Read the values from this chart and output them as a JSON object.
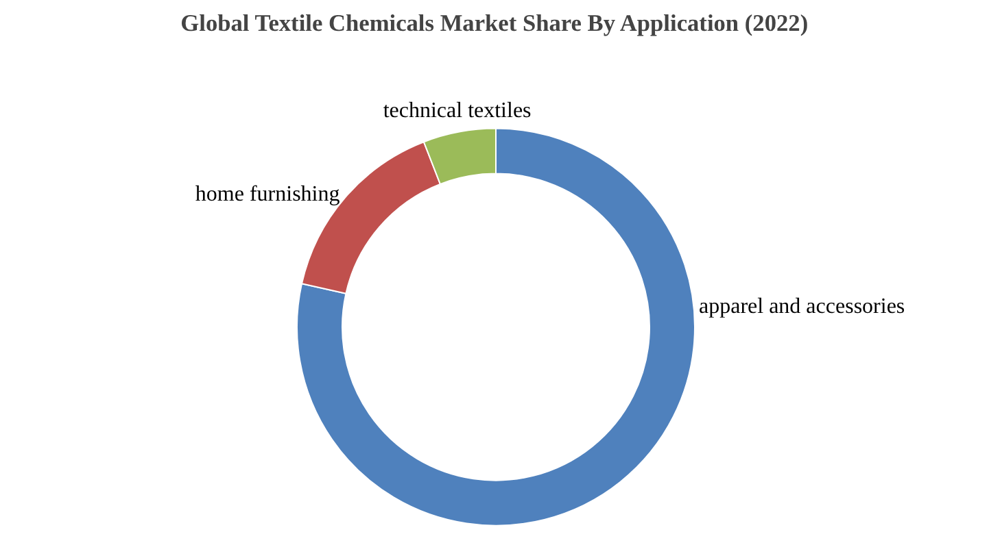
{
  "chart_data": {
    "type": "donut",
    "title": "Global Textile Chemicals Market Share By Application (2022)",
    "categories": [
      "apparel and accessories",
      "home furnishing",
      "technical textiles"
    ],
    "values": [
      78.5,
      15.6,
      5.9
    ],
    "colors": [
      "#4f81bd",
      "#c0504d",
      "#9bbb59"
    ],
    "legend": false
  }
}
